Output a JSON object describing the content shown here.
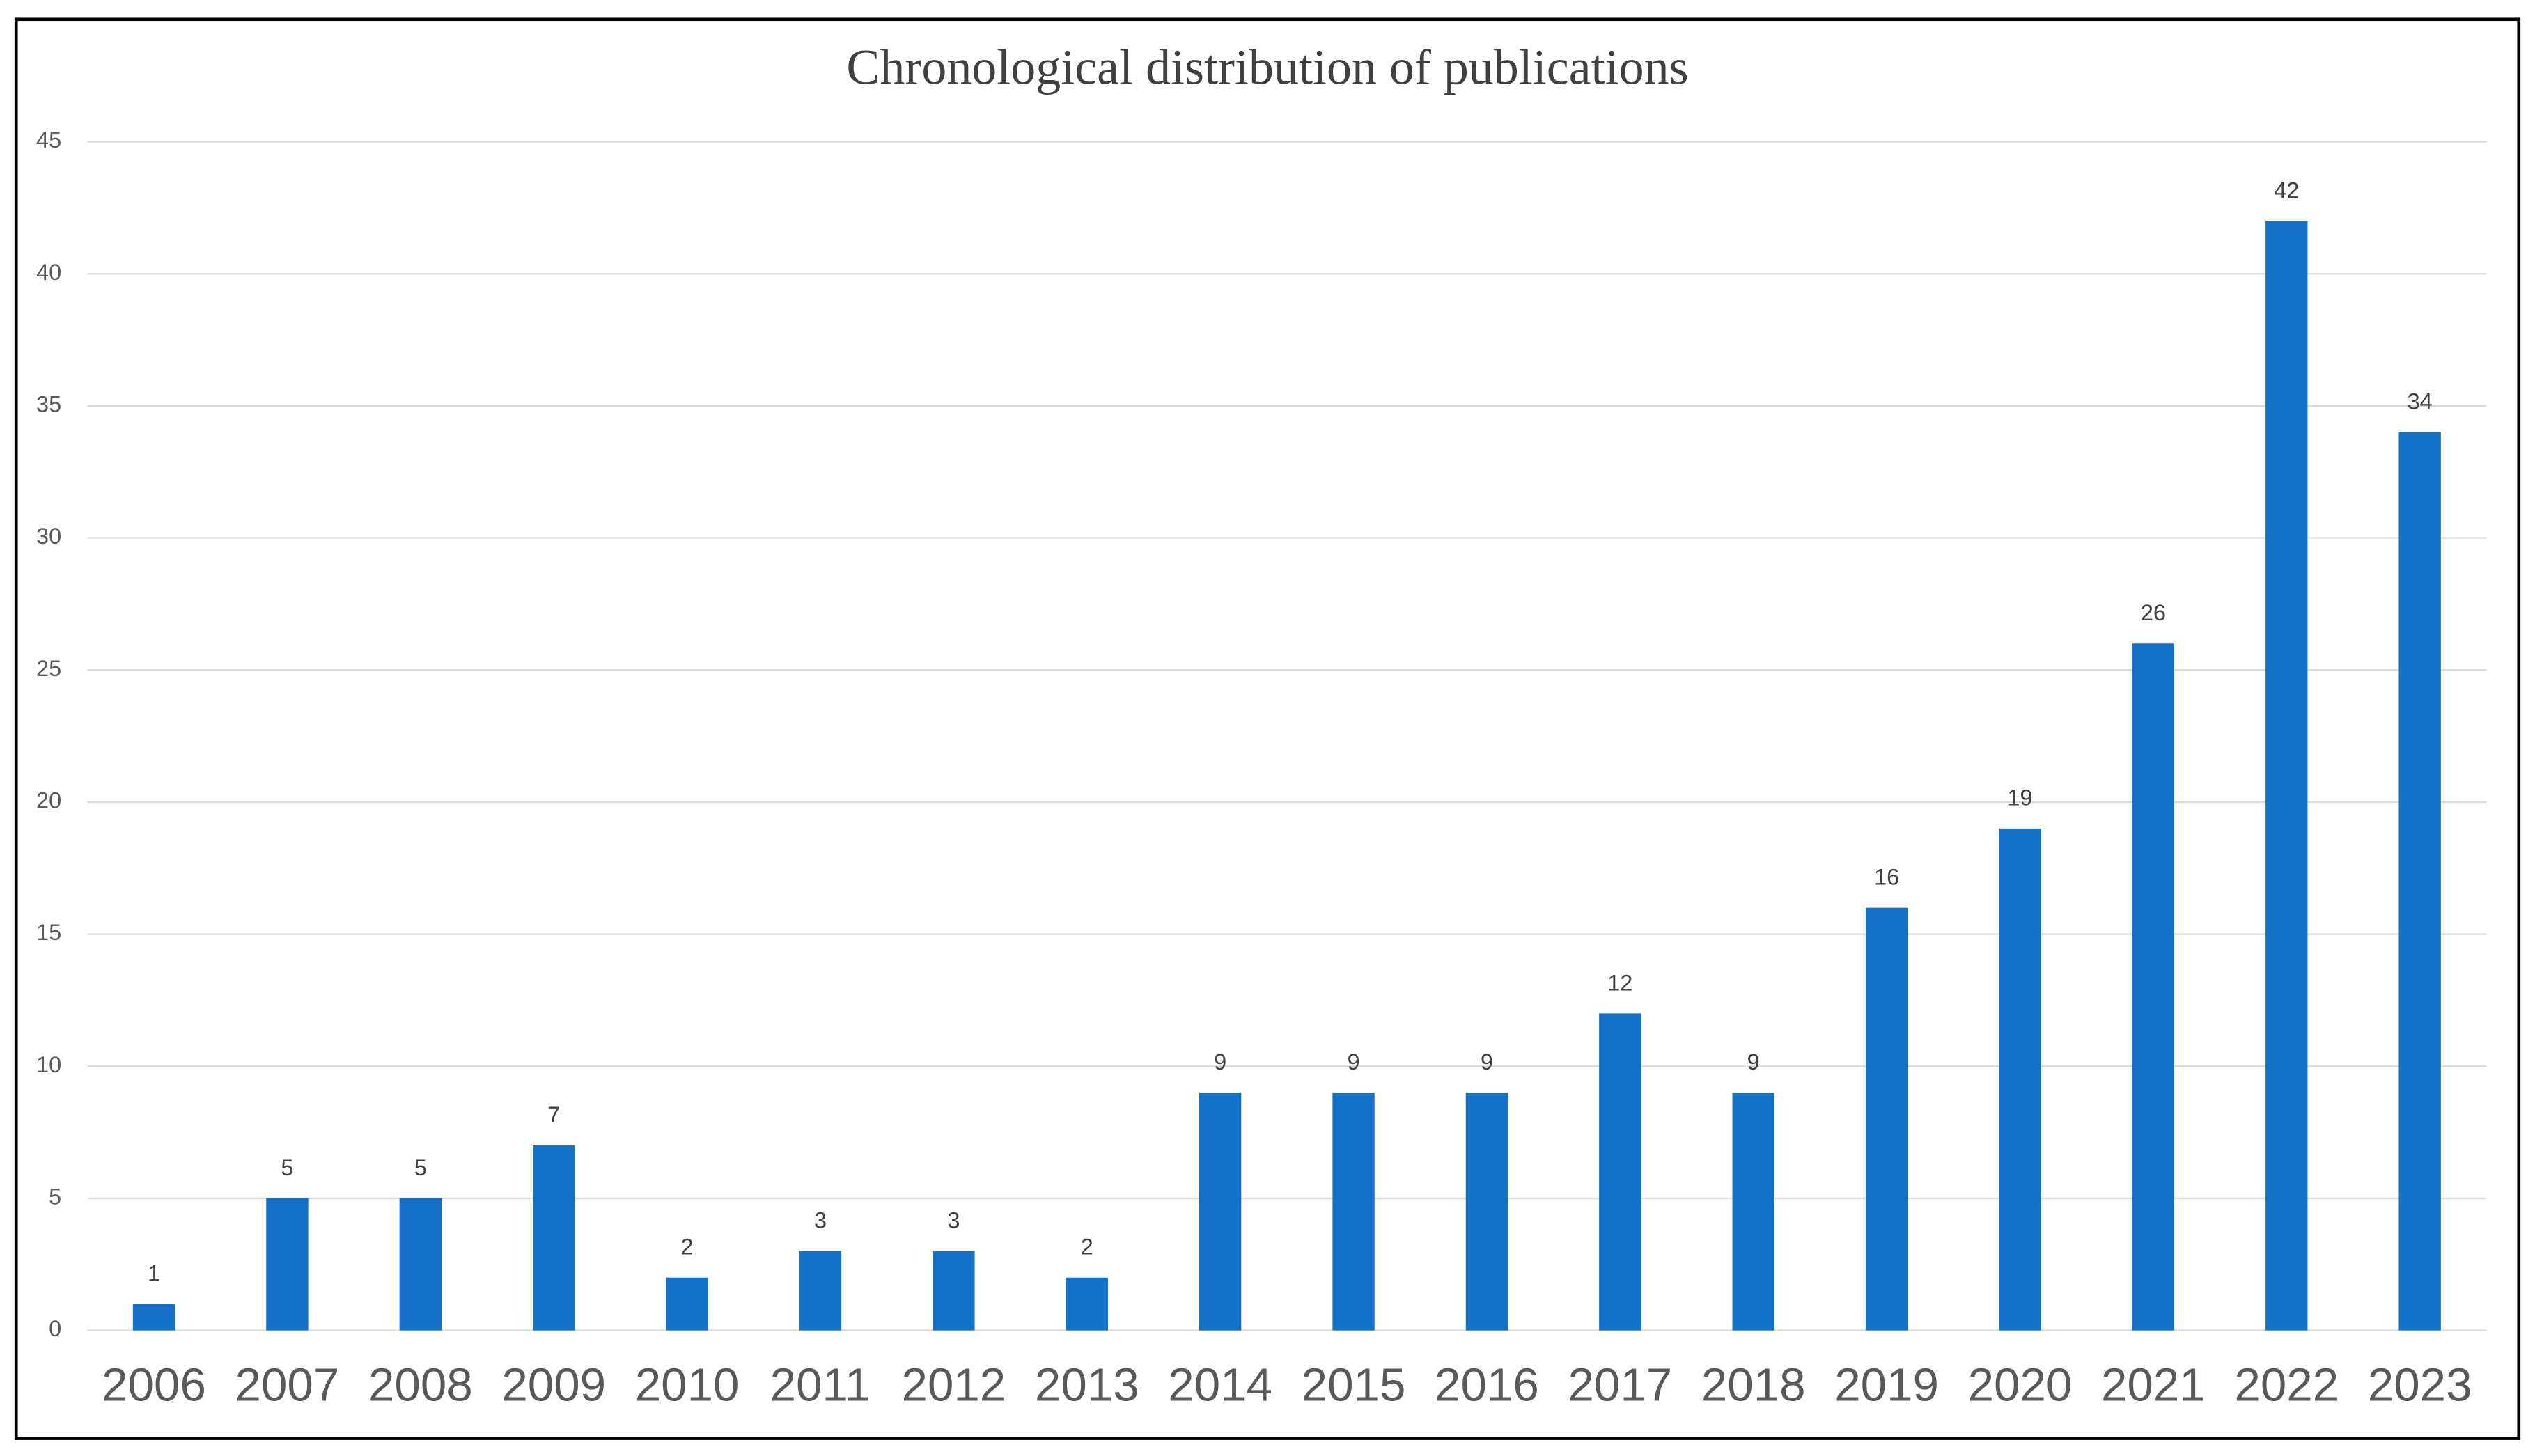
{
  "chart_data": {
    "type": "bar",
    "title": "Chronological distribution of publications",
    "categories": [
      "2006",
      "2007",
      "2008",
      "2009",
      "2010",
      "2011",
      "2012",
      "2013",
      "2014",
      "2015",
      "2016",
      "2017",
      "2018",
      "2019",
      "2020",
      "2021",
      "2022",
      "2023"
    ],
    "values": [
      1,
      5,
      5,
      7,
      2,
      3,
      3,
      2,
      9,
      9,
      9,
      12,
      9,
      16,
      19,
      26,
      42,
      34
    ],
    "color": "#1570c8",
    "ylim": [
      0,
      45
    ],
    "yticks": [
      0,
      5,
      10,
      15,
      20,
      25,
      30,
      35,
      40,
      45
    ],
    "grid": true
  }
}
